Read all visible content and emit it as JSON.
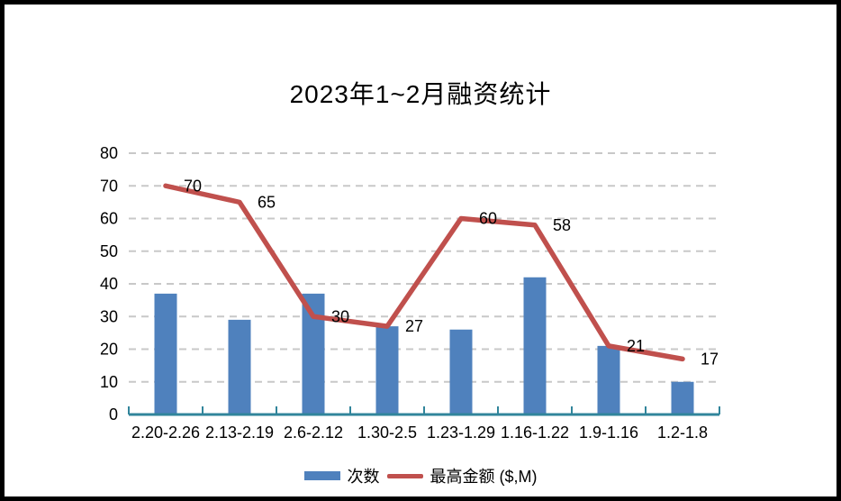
{
  "chart_data": {
    "type": "bar",
    "subtype": "combo-bar-line",
    "title": "2023年1~2月融资统计",
    "categories": [
      "2.20-2.26",
      "2.13-2.19",
      "2.6-2.12",
      "1.30-2.5",
      "1.23-1.29",
      "1.16-1.22",
      "1.9-1.16",
      "1.2-1.8"
    ],
    "series": [
      {
        "name": "次数",
        "type": "bar",
        "color": "#4F81BD",
        "values": [
          37,
          29,
          37,
          27,
          26,
          42,
          21,
          10
        ],
        "data_labels": false
      },
      {
        "name": "最高金额 ($,M)",
        "type": "line",
        "color": "#C0504D",
        "values": [
          70,
          65,
          30,
          27,
          60,
          58,
          21,
          17
        ],
        "data_labels": true
      }
    ],
    "xlabel": "",
    "ylabel": "",
    "ylim": [
      0,
      80
    ],
    "yticks": [
      0,
      10,
      20,
      30,
      40,
      50,
      60,
      70,
      80
    ],
    "grid": "horizontal-dashed",
    "legend_position": "bottom",
    "colors": {
      "axis_line": "#31859B",
      "gridline": "#C8C8C8",
      "text": "#000000",
      "background": "#FFFFFF",
      "frame_border": "#000000"
    }
  }
}
